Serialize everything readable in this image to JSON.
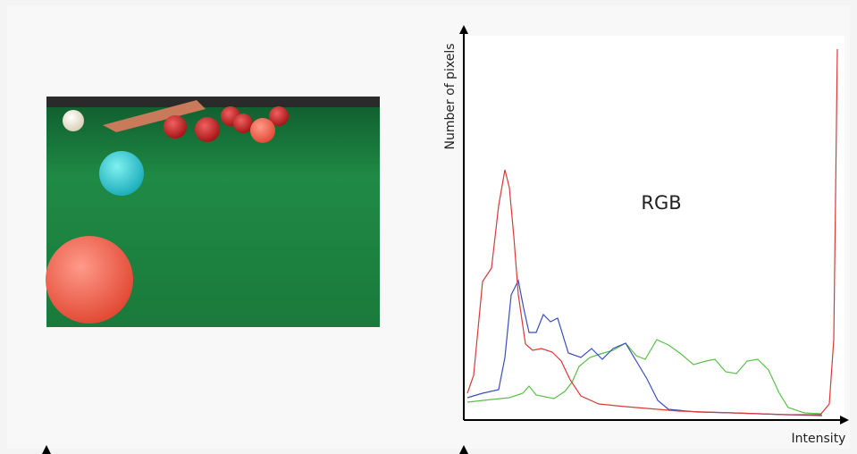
{
  "histogram": {
    "y_axis_label": "Number of pixels",
    "x_axis_label": "Intensity",
    "annotation": "RGB"
  }
}
